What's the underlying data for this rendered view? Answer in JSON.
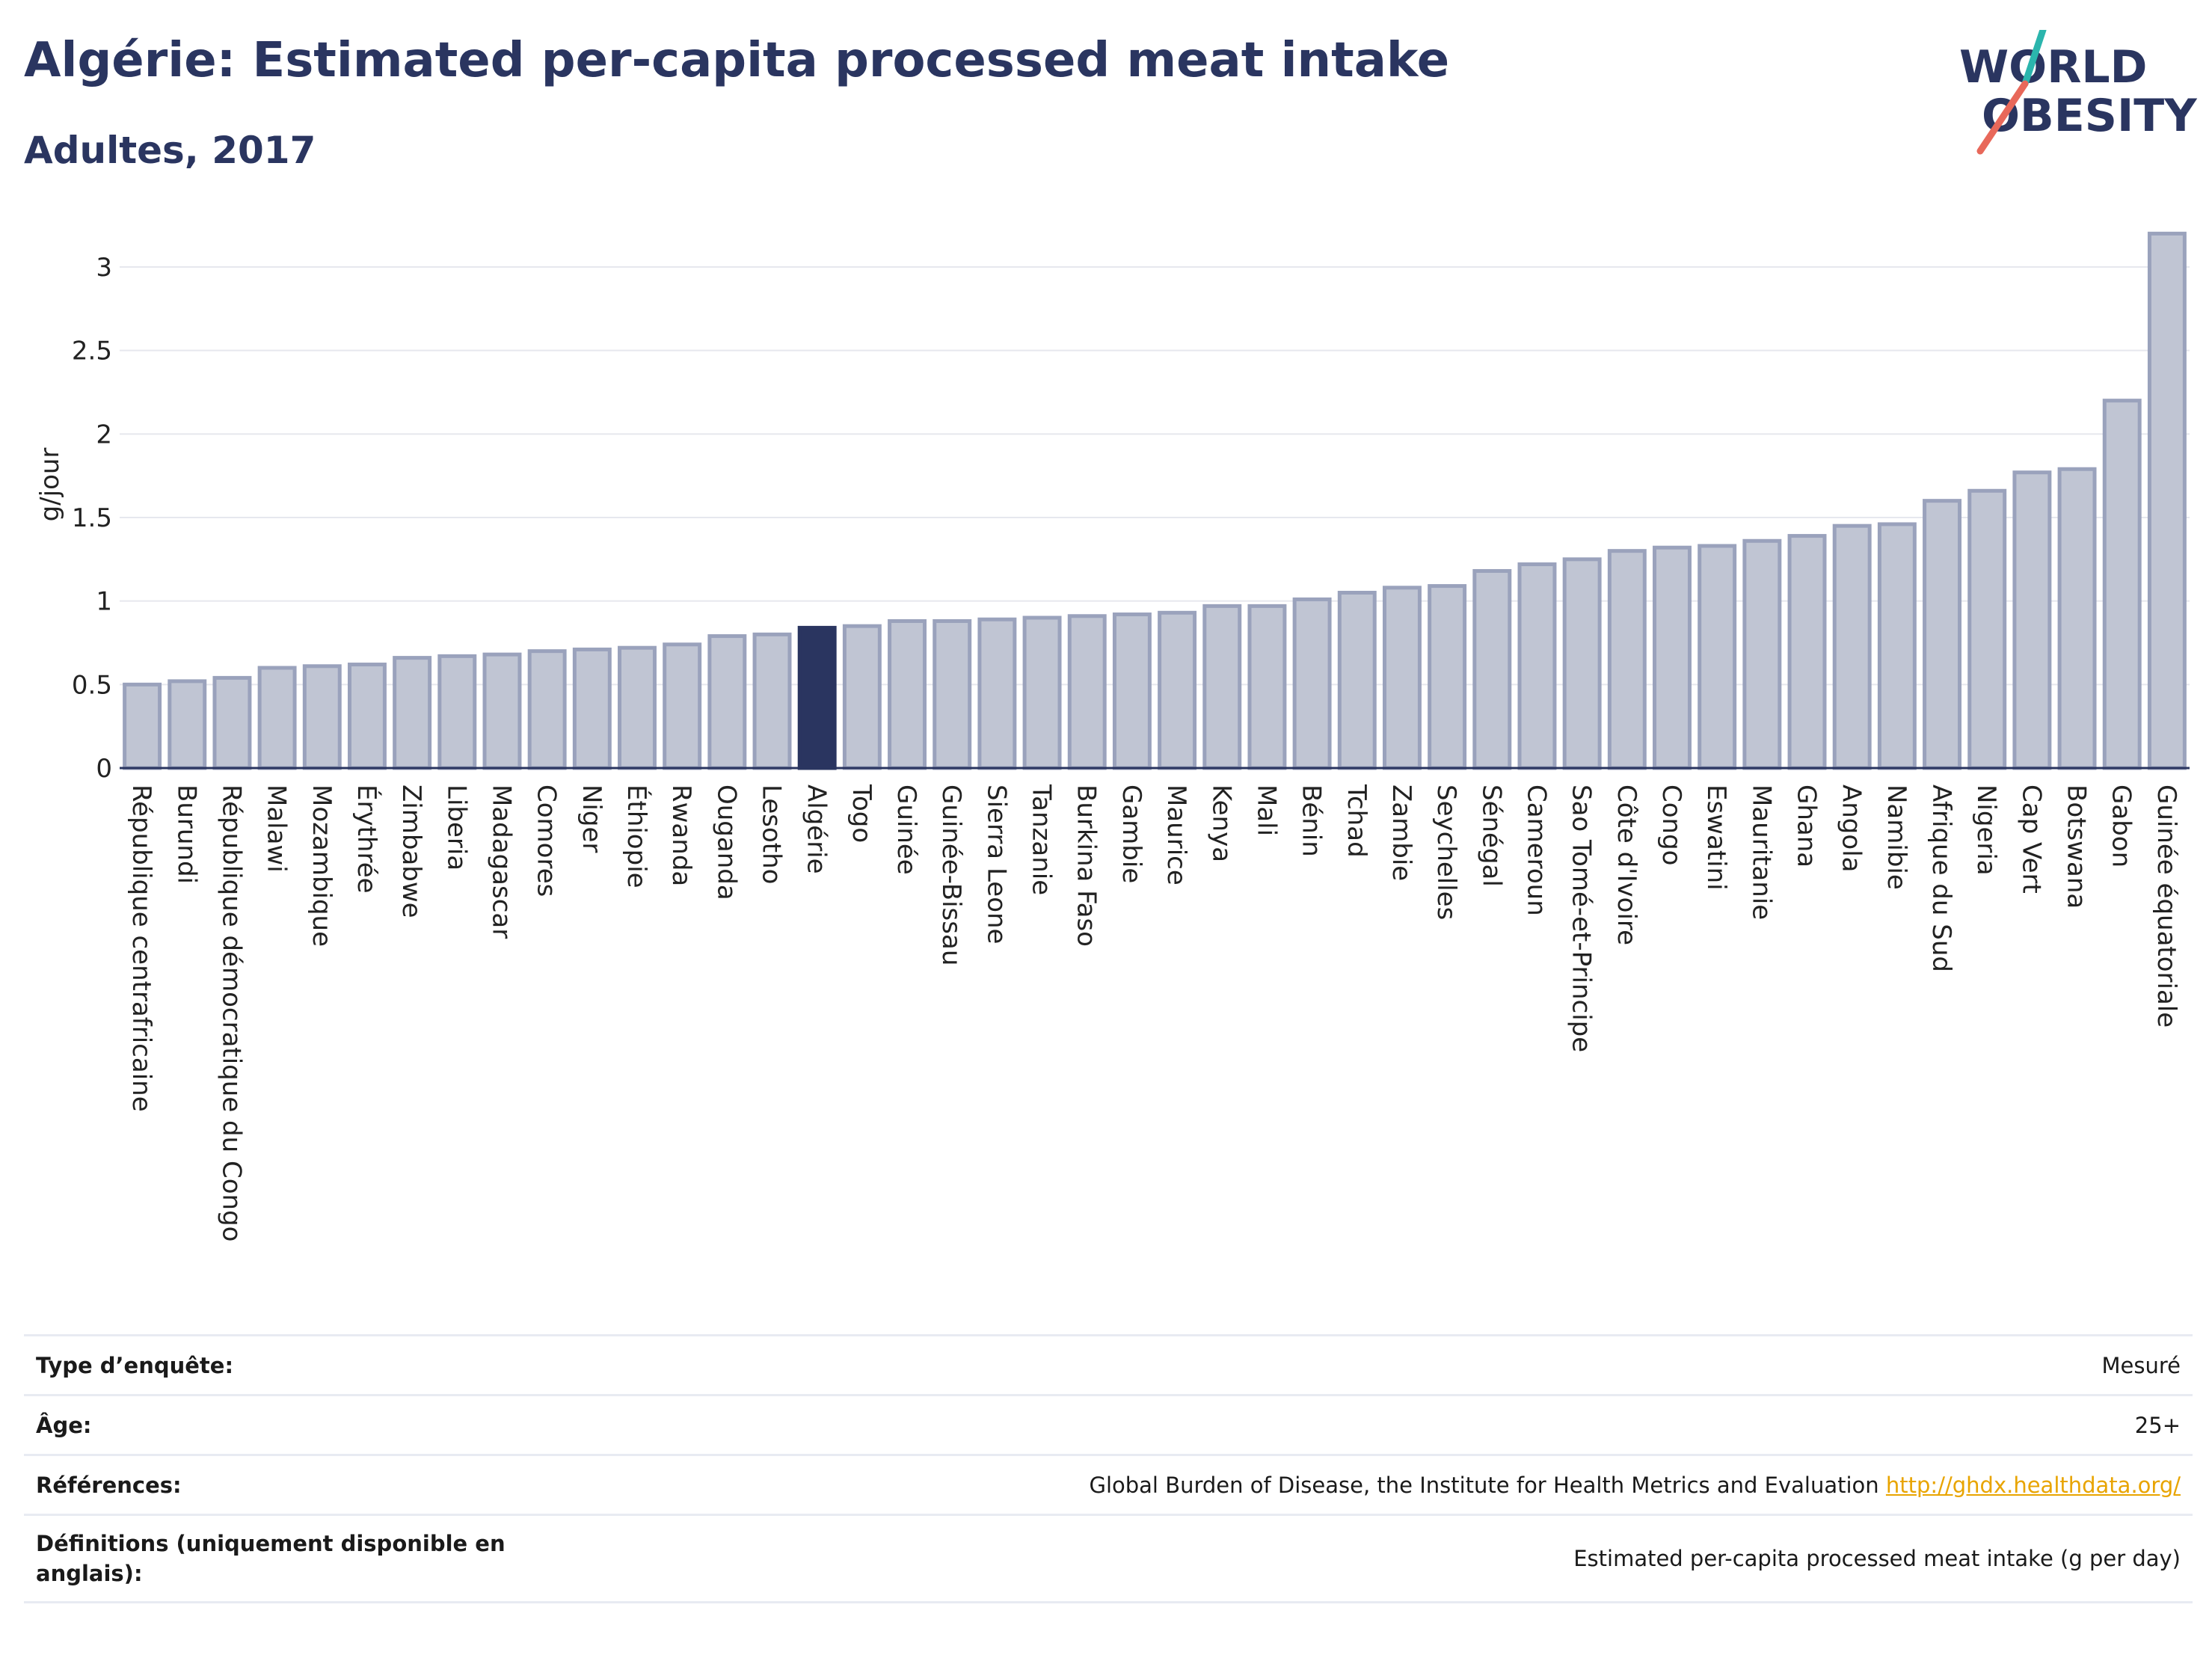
{
  "header": {
    "title": "Algérie: Estimated per-capita processed meat intake",
    "subtitle": "Adultes, 2017"
  },
  "logo": {
    "line1": "WORLD",
    "line2": "OBESITY",
    "accent_teal": "#2bb5ad",
    "accent_coral": "#e8685a"
  },
  "colors": {
    "bar_fill": "#c0c5d3",
    "bar_stroke": "#9aa2bc",
    "highlight": "#2a3560",
    "title": "#2a3560"
  },
  "chart_data": {
    "type": "bar",
    "ylabel": "g/jour",
    "xlabel": "",
    "ylim": [
      0,
      3.3
    ],
    "yticks": [
      0,
      0.5,
      1,
      1.5,
      2,
      2.5,
      3
    ],
    "ytick_labels": [
      "0",
      "0.5",
      "1",
      "1.5",
      "2",
      "2.5",
      "3"
    ],
    "grid": true,
    "highlight": "Algérie",
    "categories": [
      "République centrafricaine",
      "Burundi",
      "République démocratique du Congo",
      "Malawi",
      "Mozambique",
      "Érythrée",
      "Zimbabwe",
      "Liberia",
      "Madagascar",
      "Comores",
      "Niger",
      "Éthiopie",
      "Rwanda",
      "Ouganda",
      "Lesotho",
      "Algérie",
      "Togo",
      "Guinée",
      "Guinée-Bissau",
      "Sierra Leone",
      "Tanzanie",
      "Burkina Faso",
      "Gambie",
      "Maurice",
      "Kenya",
      "Mali",
      "Bénin",
      "Tchad",
      "Zambie",
      "Seychelles",
      "Sénégal",
      "Cameroun",
      "Sao Tomé-et-Principe",
      "Côte d'Ivoire",
      "Congo",
      "Eswatini",
      "Mauritanie",
      "Ghana",
      "Angola",
      "Namibie",
      "Afrique du Sud",
      "Nigeria",
      "Cap Vert",
      "Botswana",
      "Gabon",
      "Guinée équatoriale"
    ],
    "values": [
      0.5,
      0.52,
      0.54,
      0.6,
      0.61,
      0.62,
      0.66,
      0.67,
      0.68,
      0.7,
      0.71,
      0.72,
      0.74,
      0.79,
      0.8,
      0.84,
      0.85,
      0.88,
      0.88,
      0.89,
      0.9,
      0.91,
      0.92,
      0.93,
      0.97,
      0.97,
      1.01,
      1.05,
      1.08,
      1.09,
      1.18,
      1.22,
      1.25,
      1.3,
      1.32,
      1.33,
      1.36,
      1.39,
      1.45,
      1.46,
      1.6,
      1.66,
      1.77,
      1.79,
      2.2,
      3.2
    ]
  },
  "info": [
    {
      "label": "Type d’enquête:",
      "value": "Mesuré"
    },
    {
      "label": "Âge:",
      "value": "25+"
    },
    {
      "label": "Références:",
      "value": "Global Burden of Disease, the Institute for Health Metrics and Evaluation",
      "link": "http://ghdx.healthdata.org/"
    },
    {
      "label": "Définitions (uniquement disponible en anglais):",
      "value": "Estimated per-capita processed meat intake (g per day)"
    }
  ]
}
